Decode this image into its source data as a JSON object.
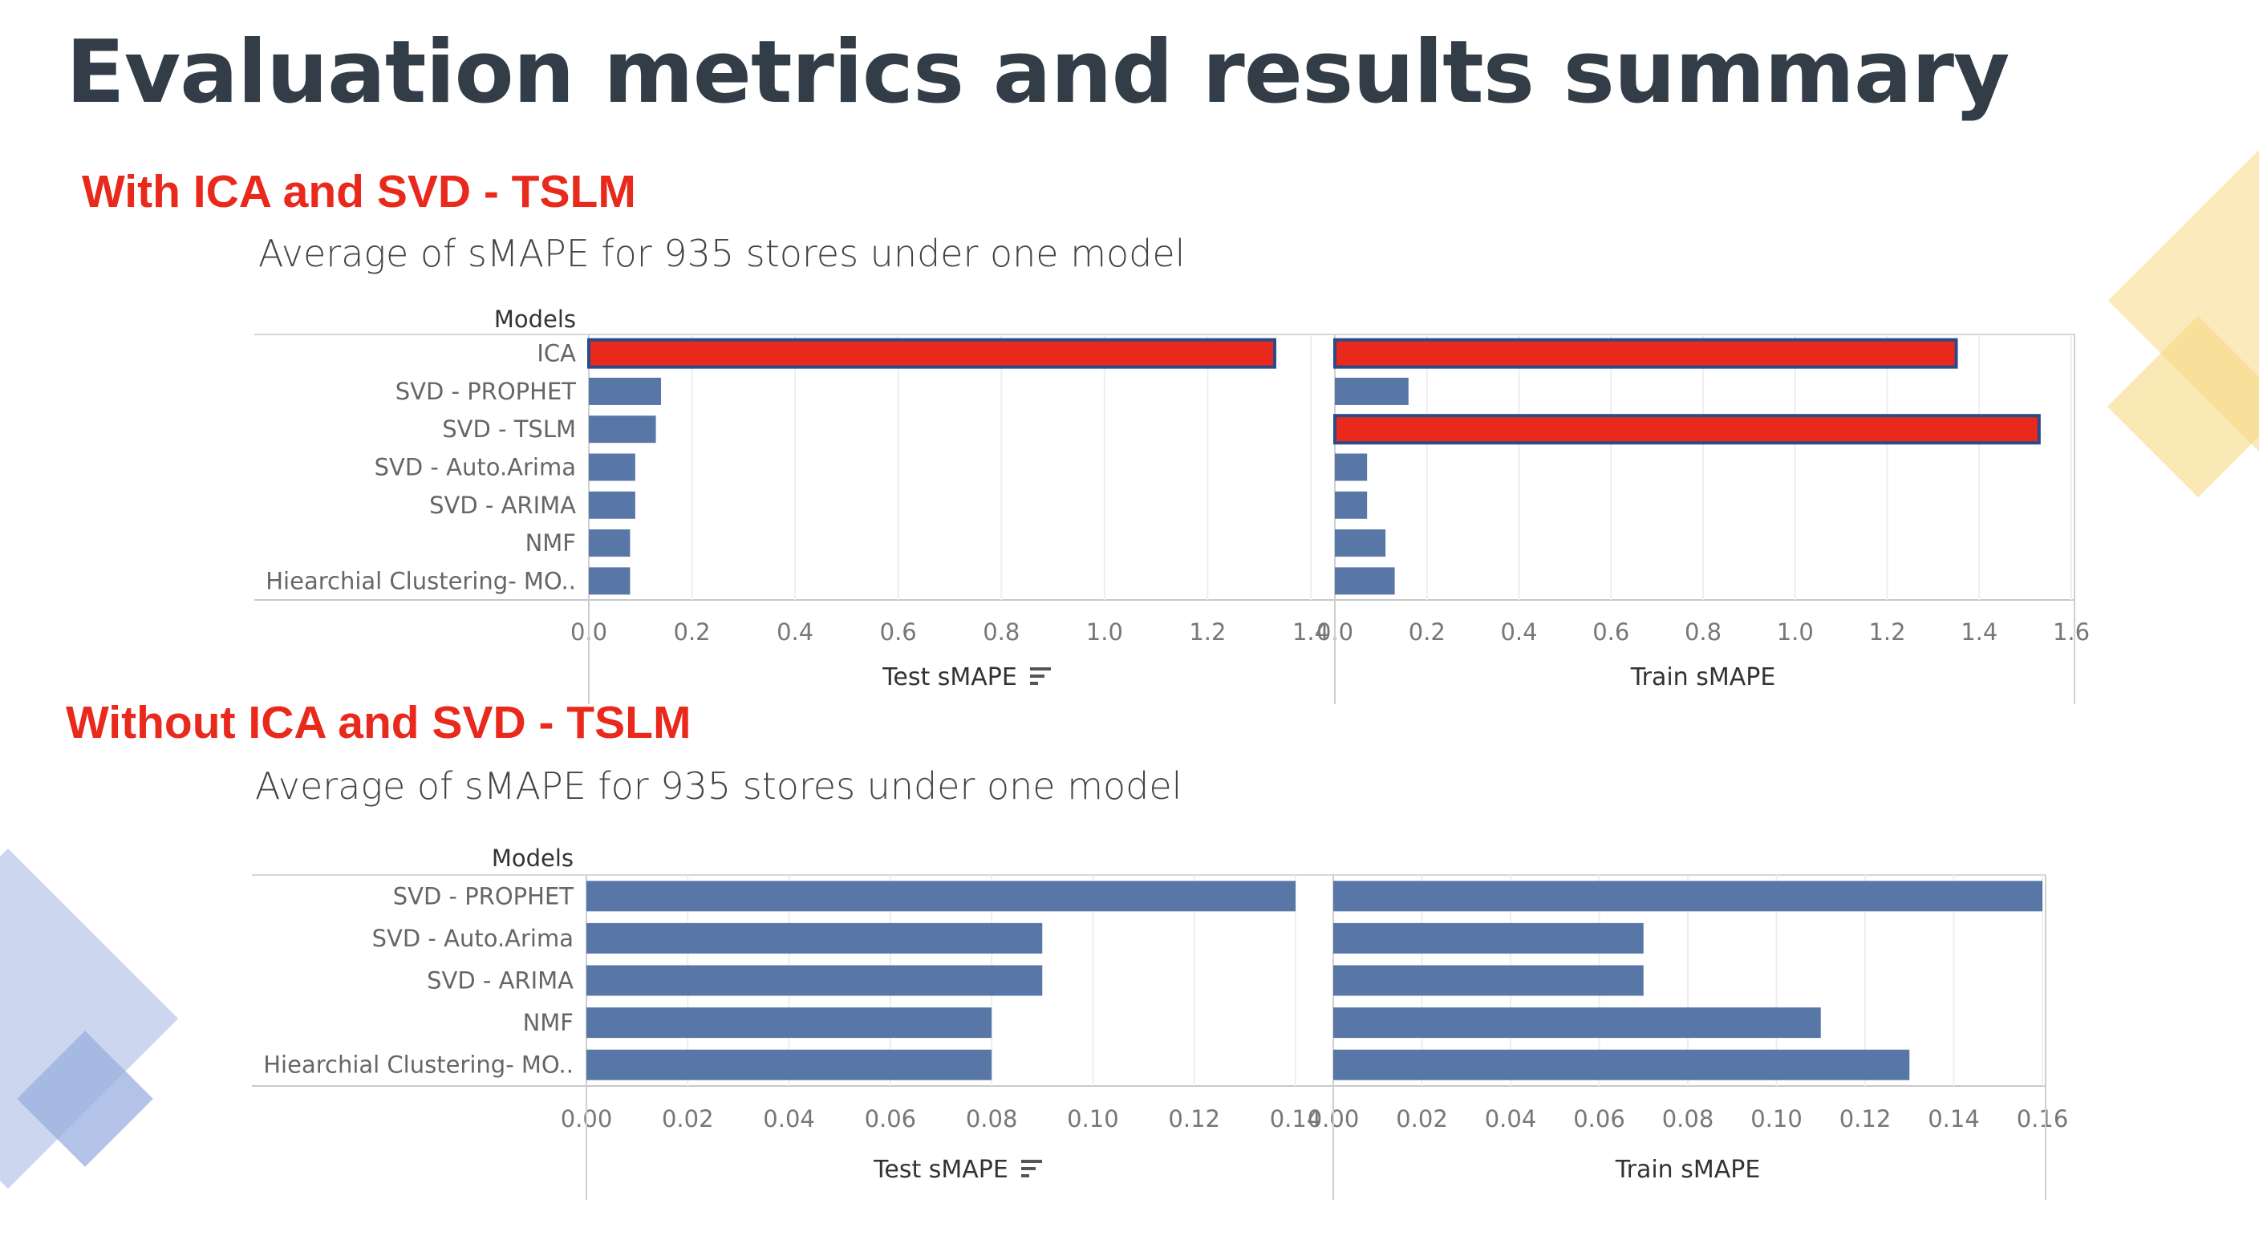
{
  "slide": {
    "title": "Evaluation metrics and results summary",
    "section_with": "With ICA and SVD - TSLM",
    "section_without": "Without ICA and SVD - TSLM"
  },
  "colors": {
    "bar": "#5877a6",
    "highlight": "#e8291c",
    "highlight_border": "#2b4a8a",
    "heading": "#e8291c",
    "title": "#333d47",
    "deco_yellow": "#f7d883",
    "deco_blue": "#99afdf"
  },
  "chart_data": [
    {
      "type": "bar",
      "orientation": "horizontal",
      "title": "Average of sMAPE for 935 stores under one model",
      "row_header": "Models",
      "categories": [
        "ICA",
        "SVD - PROPHET",
        "SVD - TSLM",
        "SVD - Auto.Arima",
        "SVD - ARIMA",
        "NMF",
        "Hiearchial Clustering- MO.."
      ],
      "series": [
        {
          "name": "Test sMAPE",
          "values": [
            1.33,
            0.14,
            0.13,
            0.09,
            0.09,
            0.08,
            0.08
          ],
          "xlim": [
            0,
            1.4
          ],
          "ticks": [
            "0.0",
            "0.2",
            "0.4",
            "0.6",
            "0.8",
            "1.0",
            "1.2",
            "1.4"
          ],
          "highlighted": [
            0
          ]
        },
        {
          "name": "Train sMAPE",
          "values": [
            1.35,
            0.16,
            1.53,
            0.07,
            0.07,
            0.11,
            0.13
          ],
          "xlim": [
            0,
            1.6
          ],
          "ticks": [
            "0.0",
            "0.2",
            "0.4",
            "0.6",
            "0.8",
            "1.0",
            "1.2",
            "1.4",
            "1.6"
          ],
          "highlighted": [
            0,
            2
          ]
        }
      ],
      "sorted_by": "Test sMAPE",
      "grid": true
    },
    {
      "type": "bar",
      "orientation": "horizontal",
      "title": "Average of sMAPE for 935 stores under one model",
      "row_header": "Models",
      "categories": [
        "SVD - PROPHET",
        "SVD - Auto.Arima",
        "SVD - ARIMA",
        "NMF",
        "Hiearchial Clustering- MO.."
      ],
      "series": [
        {
          "name": "Test sMAPE",
          "values": [
            0.14,
            0.09,
            0.09,
            0.08,
            0.08
          ],
          "xlim": [
            0,
            0.14
          ],
          "ticks": [
            "0.00",
            "0.02",
            "0.04",
            "0.06",
            "0.08",
            "0.10",
            "0.12",
            "0.14"
          ],
          "highlighted": []
        },
        {
          "name": "Train sMAPE",
          "values": [
            0.16,
            0.07,
            0.07,
            0.11,
            0.13
          ],
          "xlim": [
            0,
            0.16
          ],
          "ticks": [
            "0.00",
            "0.02",
            "0.04",
            "0.06",
            "0.08",
            "0.10",
            "0.12",
            "0.14",
            "0.16"
          ],
          "highlighted": []
        }
      ],
      "sorted_by": "Test sMAPE",
      "grid": true
    }
  ]
}
